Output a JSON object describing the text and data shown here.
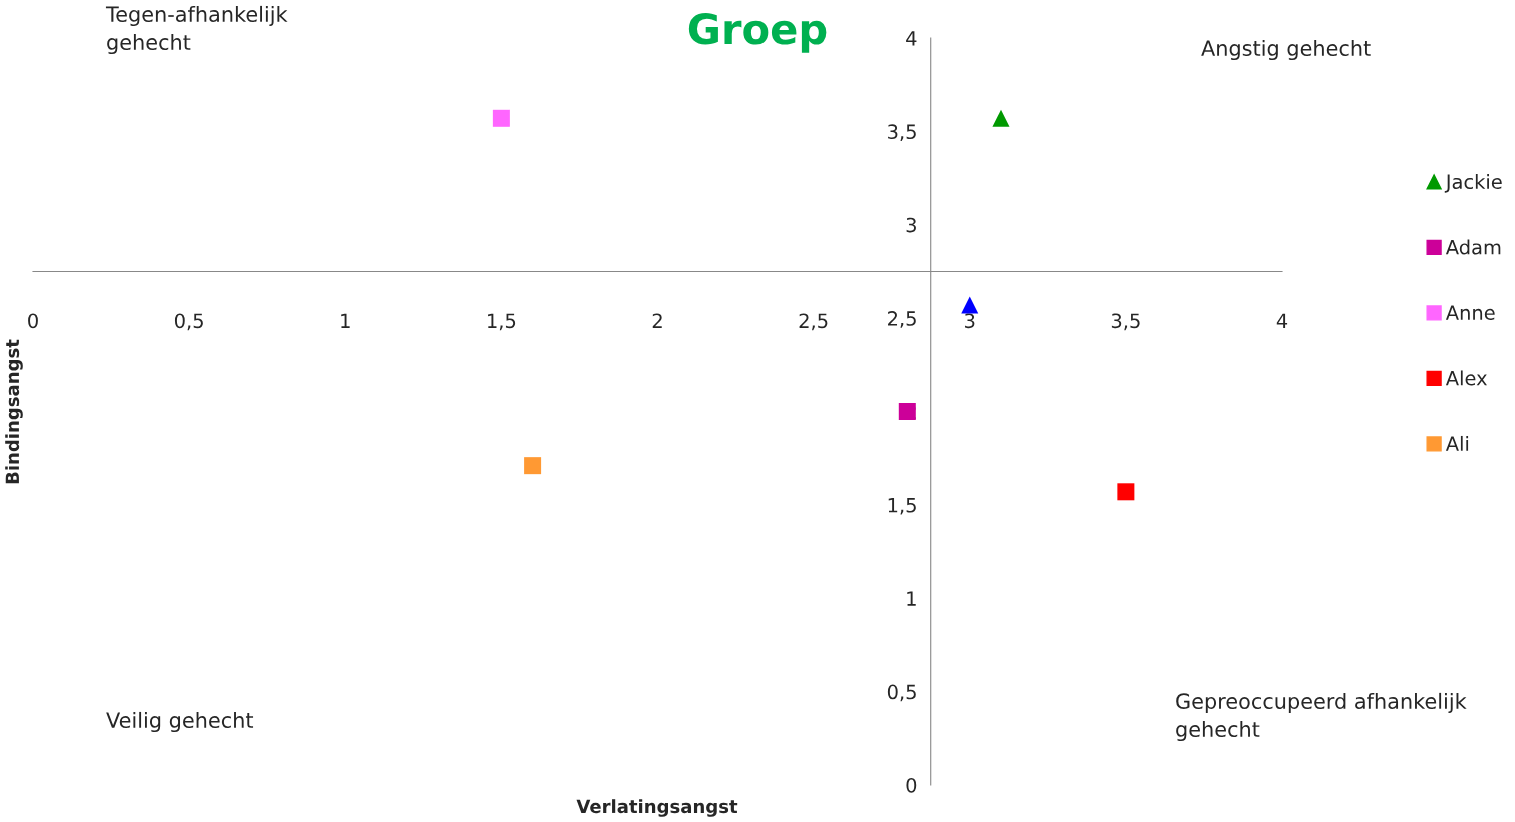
{
  "chart_data": {
    "type": "scatter",
    "title": "Groep",
    "xlabel": "Verlatingsangst",
    "ylabel": "Bindingsangst",
    "annotations": [
      "Tegen-afhankelijk\ngehecht",
      "Angstig gehecht",
      "Veilig gehecht",
      "Gepreoccupeerd afhankelijk\ngehecht"
    ],
    "xlim": [
      0,
      4
    ],
    "ylim": [
      0,
      4
    ],
    "xticks": [
      0,
      {
        "value": 0.5,
        "label": "0,5"
      },
      1,
      {
        "value": 1.5,
        "label": "1,5"
      },
      2,
      {
        "value": 2.5,
        "label": "2,5"
      },
      3,
      {
        "value": 3.5,
        "label": "3,5"
      },
      4
    ],
    "yticks": [
      0,
      {
        "value": 0.5,
        "label": "0,5"
      },
      1,
      {
        "value": 1.5,
        "label": "1,5"
      },
      2,
      {
        "value": 2.5,
        "label": "2,5"
      },
      3,
      {
        "value": 3.5,
        "label": "3,5"
      },
      4
    ],
    "grid": false,
    "legend": "right",
    "series": [
      {
        "name": "Jackie",
        "color": "#009900",
        "marker": "triangle",
        "x": [
          3.1
        ],
        "values": [
          3.57
        ]
      },
      {
        "name": "Adam",
        "color": "#cc0099",
        "marker": "square",
        "x": [
          2.8
        ],
        "values": [
          2.0
        ]
      },
      {
        "name": "Anne",
        "color": "#ff66ff",
        "marker": "square",
        "x": [
          1.5
        ],
        "values": [
          3.57
        ]
      },
      {
        "name": "Alex",
        "color": "#ff0000",
        "marker": "square",
        "x": [
          3.5
        ],
        "values": [
          1.57
        ]
      },
      {
        "name": "Ali",
        "color": "#ff9933",
        "marker": "square",
        "x": [
          1.6
        ],
        "values": [
          1.71
        ]
      },
      {
        "color": "#0000ff",
        "marker": "triangle",
        "x": [
          3.0
        ],
        "values": [
          2.57
        ]
      }
    ]
  }
}
